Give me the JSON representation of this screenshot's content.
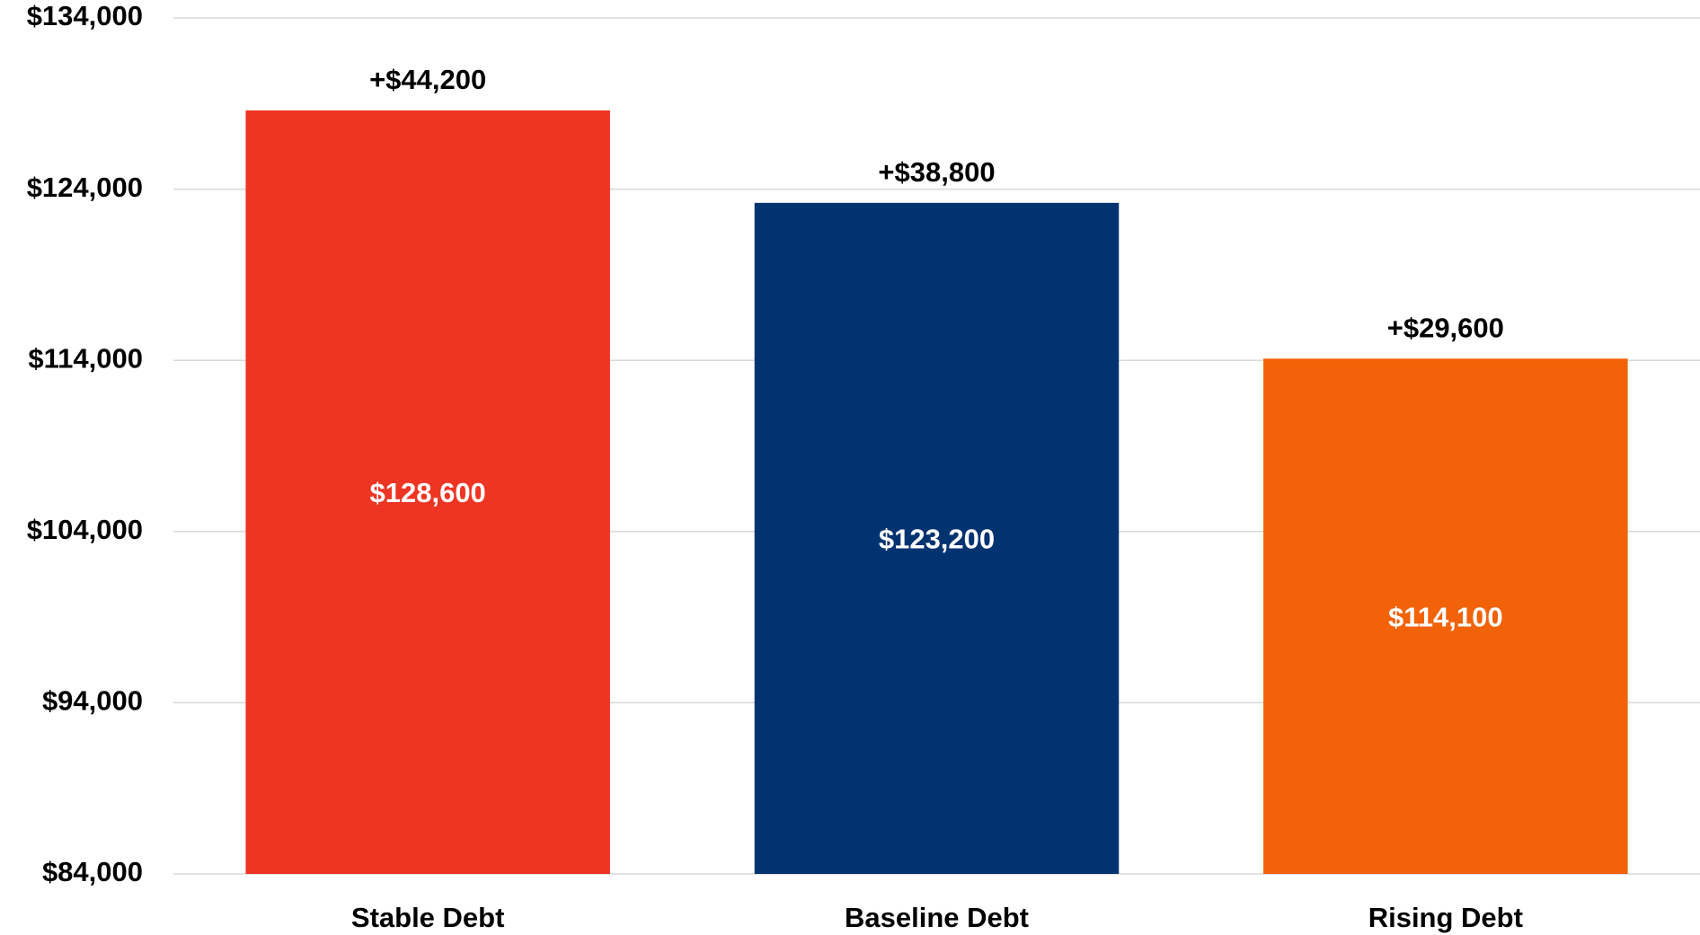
{
  "chart_data": {
    "type": "bar",
    "categories": [
      "Stable Debt",
      "Baseline Debt",
      "Rising Debt"
    ],
    "values": [
      128600,
      123200,
      114100
    ],
    "value_labels": [
      "$128,600",
      "$123,200",
      "$114,100"
    ],
    "annotations": [
      "+$44,200",
      "+$38,800",
      "+$29,600"
    ],
    "colors": [
      "#ee3524",
      "#003370",
      "#f26208"
    ],
    "ylim": [
      84000,
      134000
    ],
    "yticks": [
      {
        "value": 84000,
        "label": "$84,000"
      },
      {
        "value": 94000,
        "label": "$94,000"
      },
      {
        "value": 104000,
        "label": "$104,000"
      },
      {
        "value": 114000,
        "label": "$114,000"
      },
      {
        "value": 124000,
        "label": "$124,000"
      },
      {
        "value": 134000,
        "label": "$134,000"
      }
    ],
    "grid": true
  }
}
